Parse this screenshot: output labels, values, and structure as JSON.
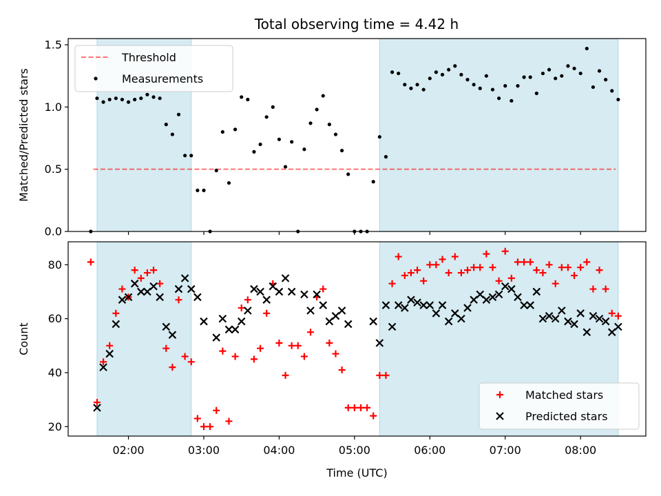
{
  "title": "Total observing time = 4.42 h",
  "colors": {
    "shade": "#add8e6",
    "threshold": "#ff0000",
    "measurement": "#000000",
    "matched": "#ff0000",
    "predicted": "#000000"
  },
  "chart_data": [
    {
      "type": "scatter",
      "panel": "top",
      "ylabel": "Matched/Predicted stars",
      "xlim": [
        "01:12",
        "08:52"
      ],
      "ylim": [
        0,
        1.55
      ],
      "yticks": [
        "0.0",
        "0.5",
        "1.0",
        "1.5"
      ],
      "legend_position": "top-left",
      "shaded_ranges": [
        [
          "01:35",
          "02:50"
        ],
        [
          "05:20",
          "08:30"
        ]
      ],
      "threshold": {
        "name": "Threshold",
        "value": 0.5,
        "x_range": [
          "01:32",
          "08:28"
        ]
      },
      "series": [
        {
          "name": "Measurements",
          "marker": "dot",
          "points": [
            [
              "01:30",
              0.0
            ],
            [
              "01:35",
              1.07
            ],
            [
              "01:40",
              1.04
            ],
            [
              "01:45",
              1.06
            ],
            [
              "01:50",
              1.07
            ],
            [
              "01:55",
              1.06
            ],
            [
              "02:00",
              1.04
            ],
            [
              "02:05",
              1.06
            ],
            [
              "02:10",
              1.07
            ],
            [
              "02:15",
              1.1
            ],
            [
              "02:20",
              1.08
            ],
            [
              "02:25",
              1.07
            ],
            [
              "02:30",
              0.86
            ],
            [
              "02:35",
              0.78
            ],
            [
              "02:40",
              0.94
            ],
            [
              "02:45",
              0.61
            ],
            [
              "02:50",
              0.61
            ],
            [
              "02:55",
              0.33
            ],
            [
              "03:00",
              0.33
            ],
            [
              "03:05",
              0.0
            ],
            [
              "03:10",
              0.49
            ],
            [
              "03:15",
              0.8
            ],
            [
              "03:20",
              0.39
            ],
            [
              "03:25",
              0.82
            ],
            [
              "03:30",
              1.08
            ],
            [
              "03:35",
              1.06
            ],
            [
              "03:40",
              0.64
            ],
            [
              "03:45",
              0.7
            ],
            [
              "03:50",
              0.92
            ],
            [
              "03:55",
              1.0
            ],
            [
              "04:00",
              0.74
            ],
            [
              "04:05",
              0.52
            ],
            [
              "04:10",
              0.72
            ],
            [
              "04:15",
              0.0
            ],
            [
              "04:20",
              0.66
            ],
            [
              "04:25",
              0.87
            ],
            [
              "04:30",
              0.98
            ],
            [
              "04:35",
              1.09
            ],
            [
              "04:40",
              0.86
            ],
            [
              "04:45",
              0.78
            ],
            [
              "04:50",
              0.65
            ],
            [
              "04:55",
              0.46
            ],
            [
              "05:00",
              0.0
            ],
            [
              "05:05",
              0.0
            ],
            [
              "05:10",
              0.0
            ],
            [
              "05:15",
              0.4
            ],
            [
              "05:20",
              0.76
            ],
            [
              "05:25",
              0.6
            ],
            [
              "05:30",
              1.28
            ],
            [
              "05:35",
              1.27
            ],
            [
              "05:40",
              1.18
            ],
            [
              "05:45",
              1.15
            ],
            [
              "05:50",
              1.18
            ],
            [
              "05:55",
              1.14
            ],
            [
              "06:00",
              1.23
            ],
            [
              "06:05",
              1.28
            ],
            [
              "06:10",
              1.26
            ],
            [
              "06:15",
              1.3
            ],
            [
              "06:20",
              1.33
            ],
            [
              "06:25",
              1.26
            ],
            [
              "06:30",
              1.22
            ],
            [
              "06:35",
              1.18
            ],
            [
              "06:40",
              1.15
            ],
            [
              "06:45",
              1.25
            ],
            [
              "06:50",
              1.14
            ],
            [
              "06:55",
              1.07
            ],
            [
              "07:00",
              1.17
            ],
            [
              "07:05",
              1.05
            ],
            [
              "07:10",
              1.17
            ],
            [
              "07:15",
              1.24
            ],
            [
              "07:20",
              1.24
            ],
            [
              "07:25",
              1.11
            ],
            [
              "07:30",
              1.27
            ],
            [
              "07:35",
              1.3
            ],
            [
              "07:40",
              1.23
            ],
            [
              "07:45",
              1.25
            ],
            [
              "07:50",
              1.33
            ],
            [
              "07:55",
              1.31
            ],
            [
              "08:00",
              1.27
            ],
            [
              "08:05",
              1.47
            ],
            [
              "08:10",
              1.16
            ],
            [
              "08:15",
              1.29
            ],
            [
              "08:20",
              1.22
            ],
            [
              "08:25",
              1.13
            ],
            [
              "08:30",
              1.06
            ]
          ]
        }
      ]
    },
    {
      "type": "scatter",
      "panel": "bottom",
      "xlabel": "Time (UTC)",
      "ylabel": "Count",
      "xlim": [
        "01:12",
        "08:52"
      ],
      "ylim": [
        16.5,
        88.5
      ],
      "xticks": [
        "02:00",
        "03:00",
        "04:00",
        "05:00",
        "06:00",
        "07:00",
        "08:00"
      ],
      "yticks": [
        "20",
        "40",
        "60",
        "80"
      ],
      "legend_position": "bottom-right",
      "shaded_ranges": [
        [
          "01:35",
          "02:50"
        ],
        [
          "05:20",
          "08:30"
        ]
      ],
      "series": [
        {
          "name": "Matched stars",
          "marker": "plus",
          "points": [
            [
              "01:30",
              81
            ],
            [
              "01:35",
              29
            ],
            [
              "01:40",
              44
            ],
            [
              "01:45",
              50
            ],
            [
              "01:50",
              62
            ],
            [
              "01:55",
              71
            ],
            [
              "02:00",
              68
            ],
            [
              "02:05",
              78
            ],
            [
              "02:10",
              75
            ],
            [
              "02:15",
              77
            ],
            [
              "02:20",
              78
            ],
            [
              "02:25",
              73
            ],
            [
              "02:30",
              49
            ],
            [
              "02:35",
              42
            ],
            [
              "02:40",
              67
            ],
            [
              "02:45",
              46
            ],
            [
              "02:50",
              44
            ],
            [
              "02:55",
              23
            ],
            [
              "03:00",
              20
            ],
            [
              "03:05",
              20
            ],
            [
              "03:10",
              26
            ],
            [
              "03:15",
              48
            ],
            [
              "03:20",
              22
            ],
            [
              "03:25",
              46
            ],
            [
              "03:30",
              64
            ],
            [
              "03:35",
              67
            ],
            [
              "03:40",
              45
            ],
            [
              "03:45",
              49
            ],
            [
              "03:50",
              62
            ],
            [
              "03:55",
              73
            ],
            [
              "04:00",
              51
            ],
            [
              "04:05",
              39
            ],
            [
              "04:10",
              50
            ],
            [
              "04:15",
              50
            ],
            [
              "04:20",
              46
            ],
            [
              "04:25",
              55
            ],
            [
              "04:30",
              68
            ],
            [
              "04:35",
              71
            ],
            [
              "04:40",
              51
            ],
            [
              "04:45",
              47
            ],
            [
              "04:50",
              41
            ],
            [
              "04:55",
              27
            ],
            [
              "05:00",
              27
            ],
            [
              "05:05",
              27
            ],
            [
              "05:10",
              27
            ],
            [
              "05:15",
              24
            ],
            [
              "05:20",
              39
            ],
            [
              "05:25",
              39
            ],
            [
              "05:30",
              73
            ],
            [
              "05:35",
              83
            ],
            [
              "05:40",
              76
            ],
            [
              "05:45",
              77
            ],
            [
              "05:50",
              78
            ],
            [
              "05:55",
              74
            ],
            [
              "06:00",
              80
            ],
            [
              "06:05",
              80
            ],
            [
              "06:10",
              82
            ],
            [
              "06:15",
              77
            ],
            [
              "06:20",
              83
            ],
            [
              "06:25",
              77
            ],
            [
              "06:30",
              78
            ],
            [
              "06:35",
              79
            ],
            [
              "06:40",
              79
            ],
            [
              "06:45",
              84
            ],
            [
              "06:50",
              79
            ],
            [
              "06:55",
              74
            ],
            [
              "07:00",
              85
            ],
            [
              "07:05",
              75
            ],
            [
              "07:10",
              81
            ],
            [
              "07:15",
              81
            ],
            [
              "07:20",
              81
            ],
            [
              "07:25",
              78
            ],
            [
              "07:30",
              77
            ],
            [
              "07:35",
              80
            ],
            [
              "07:40",
              73
            ],
            [
              "07:45",
              79
            ],
            [
              "07:50",
              79
            ],
            [
              "07:55",
              76
            ],
            [
              "08:00",
              79
            ],
            [
              "08:05",
              81
            ],
            [
              "08:10",
              71
            ],
            [
              "08:15",
              78
            ],
            [
              "08:20",
              71
            ],
            [
              "08:25",
              62
            ],
            [
              "08:30",
              61
            ]
          ]
        },
        {
          "name": "Predicted stars",
          "marker": "x",
          "points": [
            [
              "01:35",
              27
            ],
            [
              "01:40",
              42
            ],
            [
              "01:45",
              47
            ],
            [
              "01:50",
              58
            ],
            [
              "01:55",
              67
            ],
            [
              "02:00",
              68
            ],
            [
              "02:05",
              73
            ],
            [
              "02:10",
              70
            ],
            [
              "02:15",
              70
            ],
            [
              "02:20",
              72
            ],
            [
              "02:25",
              68
            ],
            [
              "02:30",
              57
            ],
            [
              "02:35",
              54
            ],
            [
              "02:40",
              71
            ],
            [
              "02:45",
              75
            ],
            [
              "02:50",
              71
            ],
            [
              "02:55",
              68
            ],
            [
              "03:00",
              59
            ],
            [
              "03:10",
              53
            ],
            [
              "03:15",
              60
            ],
            [
              "03:20",
              56
            ],
            [
              "03:25",
              56
            ],
            [
              "03:30",
              59
            ],
            [
              "03:35",
              63
            ],
            [
              "03:40",
              71
            ],
            [
              "03:45",
              70
            ],
            [
              "03:50",
              67
            ],
            [
              "03:55",
              72
            ],
            [
              "04:00",
              70
            ],
            [
              "04:05",
              75
            ],
            [
              "04:10",
              70
            ],
            [
              "04:20",
              69
            ],
            [
              "04:25",
              63
            ],
            [
              "04:30",
              69
            ],
            [
              "04:35",
              65
            ],
            [
              "04:40",
              59
            ],
            [
              "04:45",
              61
            ],
            [
              "04:50",
              63
            ],
            [
              "04:55",
              58
            ],
            [
              "05:15",
              59
            ],
            [
              "05:20",
              51
            ],
            [
              "05:25",
              65
            ],
            [
              "05:30",
              57
            ],
            [
              "05:35",
              65
            ],
            [
              "05:40",
              64
            ],
            [
              "05:45",
              67
            ],
            [
              "05:50",
              66
            ],
            [
              "05:55",
              65
            ],
            [
              "06:00",
              65
            ],
            [
              "06:05",
              62
            ],
            [
              "06:10",
              65
            ],
            [
              "06:15",
              59
            ],
            [
              "06:20",
              62
            ],
            [
              "06:25",
              60
            ],
            [
              "06:30",
              64
            ],
            [
              "06:35",
              67
            ],
            [
              "06:40",
              69
            ],
            [
              "06:45",
              67
            ],
            [
              "06:50",
              68
            ],
            [
              "06:55",
              69
            ],
            [
              "07:00",
              72
            ],
            [
              "07:05",
              71
            ],
            [
              "07:10",
              68
            ],
            [
              "07:15",
              65
            ],
            [
              "07:20",
              65
            ],
            [
              "07:25",
              70
            ],
            [
              "07:30",
              60
            ],
            [
              "07:35",
              61
            ],
            [
              "07:40",
              60
            ],
            [
              "07:45",
              63
            ],
            [
              "07:50",
              59
            ],
            [
              "07:55",
              58
            ],
            [
              "08:00",
              62
            ],
            [
              "08:05",
              55
            ],
            [
              "08:10",
              61
            ],
            [
              "08:15",
              60
            ],
            [
              "08:20",
              59
            ],
            [
              "08:25",
              55
            ],
            [
              "08:30",
              57
            ]
          ]
        }
      ]
    }
  ]
}
